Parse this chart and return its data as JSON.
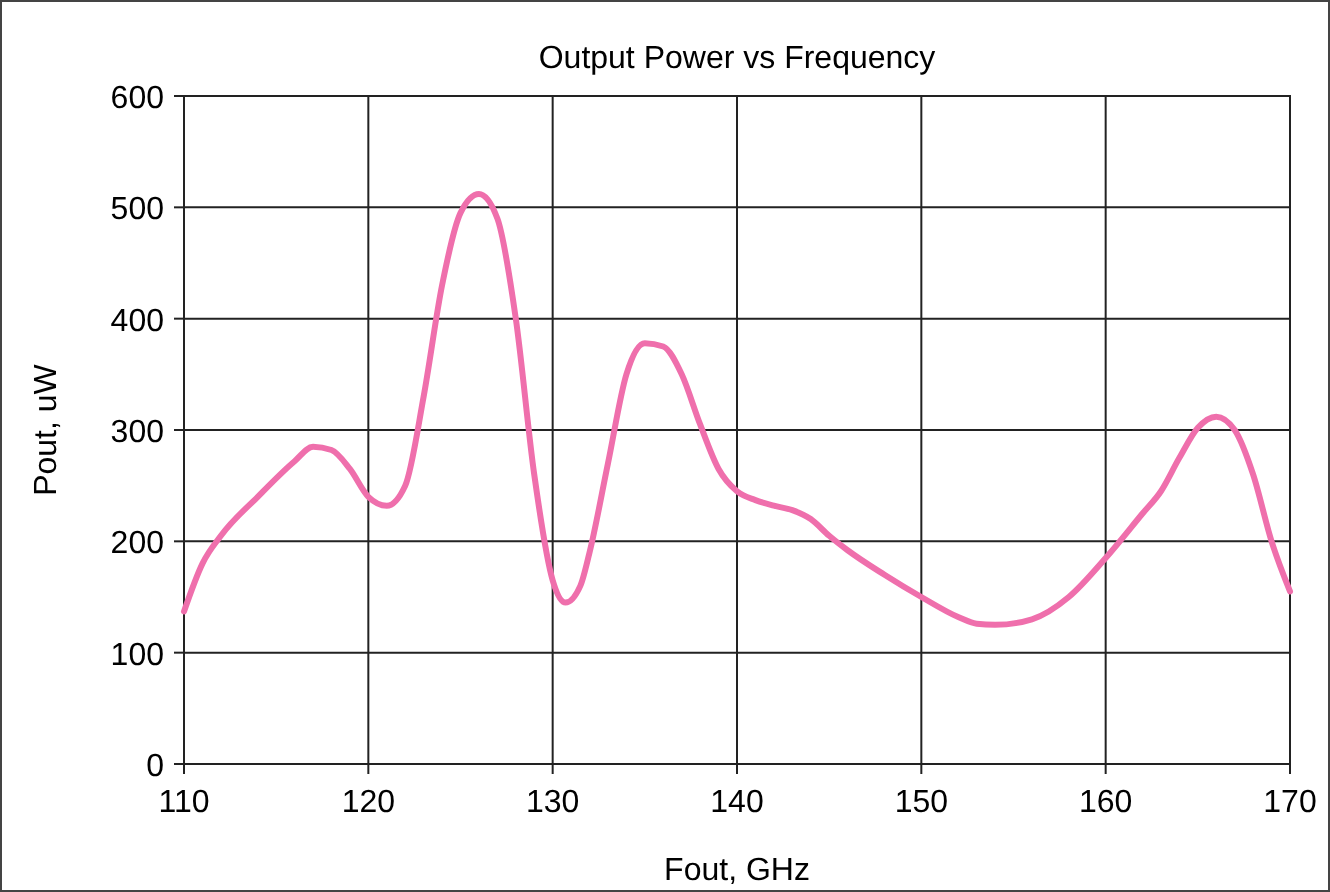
{
  "chart_data": {
    "type": "line",
    "title": "Output Power vs Frequency",
    "xlabel": "Fout, GHz",
    "ylabel": "Pout, uW",
    "x": [
      110,
      111,
      112,
      114,
      116,
      117,
      118,
      119,
      120,
      121,
      122,
      123,
      124,
      125,
      126,
      127,
      128,
      129,
      130,
      130.7,
      131.5,
      132,
      133,
      134,
      135,
      136,
      137,
      138,
      139,
      140,
      141,
      142,
      143,
      144,
      145,
      146,
      148,
      150,
      152,
      153,
      154,
      156,
      158,
      160,
      162,
      163,
      164,
      165,
      166,
      167,
      168,
      169,
      170
    ],
    "series": [
      {
        "color": "#ef6fac",
        "values": [
          137,
          180,
          205,
          240,
          272,
          285,
          282,
          265,
          240,
          232,
          250,
          330,
          430,
          495,
          512,
          490,
          400,
          260,
          165,
          145,
          160,
          190,
          270,
          350,
          378,
          375,
          350,
          305,
          265,
          245,
          237,
          232,
          228,
          220,
          205,
          192,
          170,
          150,
          132,
          126,
          125,
          130,
          150,
          185,
          225,
          245,
          275,
          302,
          312,
          300,
          260,
          200,
          155
        ]
      }
    ],
    "xlim": [
      110,
      170
    ],
    "xticks": [
      110,
      120,
      130,
      140,
      150,
      160,
      170
    ],
    "ylim": [
      0,
      600
    ],
    "yticks": [
      0,
      100,
      200,
      300,
      400,
      500,
      600
    ],
    "grid": true,
    "marker": "none",
    "line_style": "solid"
  }
}
